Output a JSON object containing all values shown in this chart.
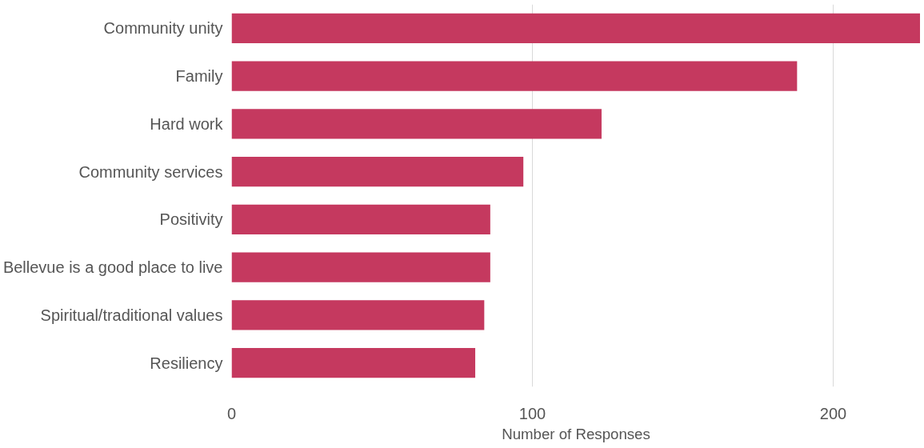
{
  "chart_data": {
    "type": "bar",
    "orientation": "horizontal",
    "xlabel": "Number of Responses",
    "categories": [
      "Community unity",
      "Family",
      "Hard work",
      "Community services",
      "Positivity",
      "Bellevue is a good place to live",
      "Spiritual/traditional values",
      "Resiliency"
    ],
    "values": [
      229,
      188,
      123,
      97,
      86,
      86,
      84,
      81
    ],
    "color": "#c5395f",
    "xlim": [
      0,
      229
    ],
    "xticks": [
      0,
      100,
      200
    ],
    "grid": "x"
  }
}
